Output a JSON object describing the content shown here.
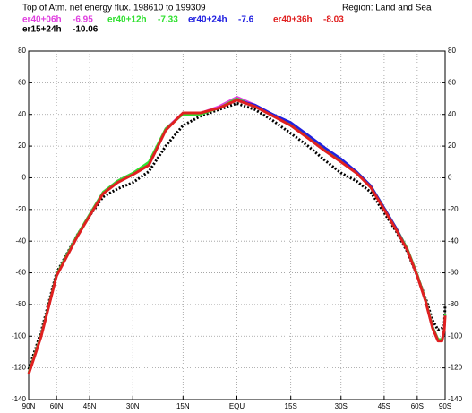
{
  "chart_data": {
    "type": "line",
    "title": "Top of Atm. net energy flux. 198610 to 199309",
    "subtitle": "Region: Land and Sea",
    "x": [
      90,
      80,
      70,
      60,
      50,
      45,
      40,
      35,
      30,
      25,
      20,
      15,
      10,
      5,
      0,
      -5,
      -10,
      -15,
      -20,
      -25,
      -30,
      -35,
      -40,
      -45,
      -50,
      -55,
      -60,
      -65,
      -70,
      -75,
      -80,
      -85,
      -90
    ],
    "xscale": "sine",
    "xlim": [
      90,
      -90
    ],
    "xticks": [
      {
        "value": 90,
        "label": "90N"
      },
      {
        "value": 60,
        "label": "60N"
      },
      {
        "value": 45,
        "label": "45N"
      },
      {
        "value": 30,
        "label": "30N"
      },
      {
        "value": 15,
        "label": "15N"
      },
      {
        "value": 0,
        "label": "EQU"
      },
      {
        "value": -15,
        "label": "15S"
      },
      {
        "value": -30,
        "label": "30S"
      },
      {
        "value": -45,
        "label": "45S"
      },
      {
        "value": -60,
        "label": "60S"
      },
      {
        "value": -90,
        "label": "90S"
      }
    ],
    "ylim": [
      -140,
      80
    ],
    "yticks": [
      -140,
      -120,
      -100,
      -80,
      -60,
      -40,
      -20,
      0,
      20,
      40,
      60,
      80
    ],
    "grid": true,
    "series": [
      {
        "name": "er40+06h",
        "mean": -6.95,
        "color": "#e040e0",
        "width": 2.5,
        "values": [
          -123,
          -117,
          -99,
          -61,
          -36,
          -23,
          -9,
          -2,
          3,
          9,
          31,
          41,
          41,
          45,
          51,
          46,
          40,
          34,
          26,
          18,
          11,
          4,
          -5,
          -19,
          -32,
          -45,
          -61,
          -77,
          -94,
          -102,
          -102,
          -95,
          -86
        ]
      },
      {
        "name": "er40+12h",
        "mean": -7.33,
        "color": "#30e030",
        "width": 2.5,
        "values": [
          -123,
          -117,
          -99,
          -61,
          -36,
          -23,
          -9,
          -2,
          3,
          10,
          31,
          40,
          40,
          44,
          50,
          45,
          40,
          34,
          26,
          18,
          11,
          4,
          -5,
          -19,
          -32,
          -45,
          -61,
          -77,
          -94,
          -102,
          -102,
          -95,
          -86
        ]
      },
      {
        "name": "er40+24h",
        "mean": -7.6,
        "color": "#2020e0",
        "width": 2.5,
        "values": [
          -124,
          -118,
          -100,
          -62,
          -37,
          -24,
          -10,
          -3,
          2,
          8,
          30,
          41,
          41,
          44,
          49,
          46,
          40,
          35,
          27,
          19,
          12,
          4,
          -5,
          -19,
          -32,
          -46,
          -62,
          -78,
          -95,
          -103,
          -103,
          -96,
          -87
        ]
      },
      {
        "name": "er40+36h",
        "mean": -8.03,
        "color": "#e02020",
        "width": 3,
        "values": [
          -124,
          -118,
          -100,
          -62,
          -37,
          -24,
          -10,
          -3,
          2,
          8,
          30,
          41,
          41,
          44,
          49,
          45,
          39,
          33,
          25,
          17,
          10,
          3,
          -6,
          -20,
          -33,
          -46,
          -62,
          -78,
          -95,
          -103,
          -103,
          -96,
          -87
        ]
      },
      {
        "name": "er15+24h",
        "mean": -10.06,
        "color": "#000000",
        "width": 3,
        "dash": true,
        "values": [
          -121,
          -115,
          -97,
          -60,
          -36,
          -24,
          -12,
          -7,
          -3,
          4,
          20,
          33,
          39,
          43,
          47,
          43,
          36,
          28,
          20,
          11,
          3,
          -2,
          -9,
          -22,
          -34,
          -47,
          -62,
          -76,
          -90,
          -96,
          -95,
          -93,
          -80
        ]
      }
    ]
  }
}
